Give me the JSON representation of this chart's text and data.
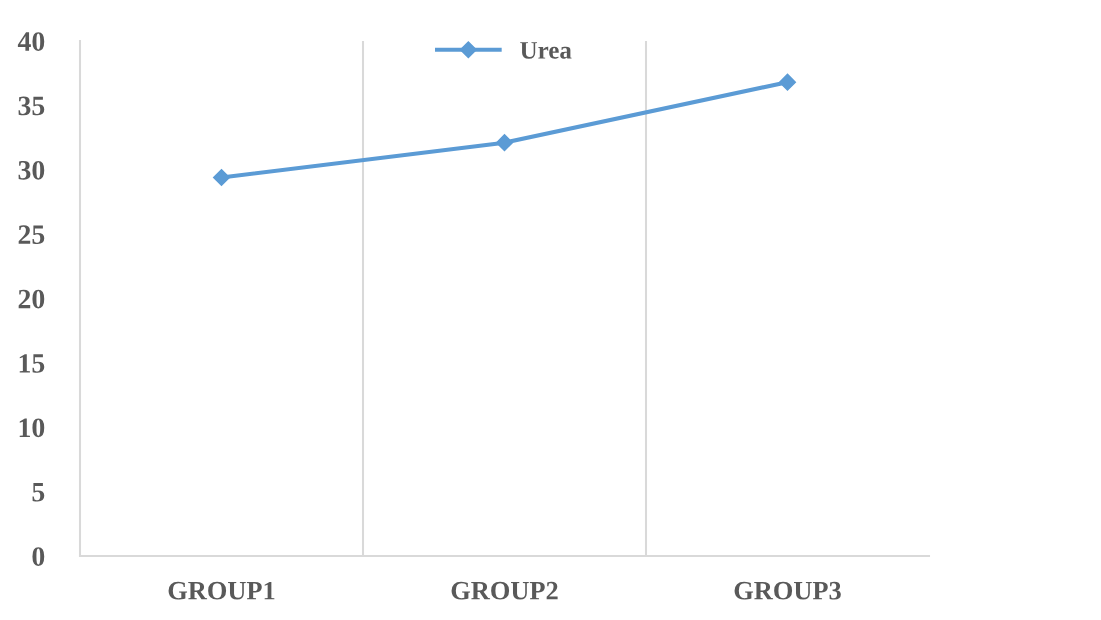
{
  "chart_data": {
    "type": "line",
    "categories": [
      "GROUP1",
      "GROUP2",
      "GROUP3"
    ],
    "series": [
      {
        "name": "Urea",
        "color": "#5b9bd5",
        "values": [
          29.4,
          32.1,
          36.8
        ]
      }
    ],
    "ylim": [
      0,
      40
    ],
    "yticks": [
      0,
      5,
      10,
      15,
      20,
      25,
      30,
      35,
      40
    ],
    "grid": "x",
    "legend": "top",
    "marker": "diamond",
    "line_style": "solid"
  }
}
